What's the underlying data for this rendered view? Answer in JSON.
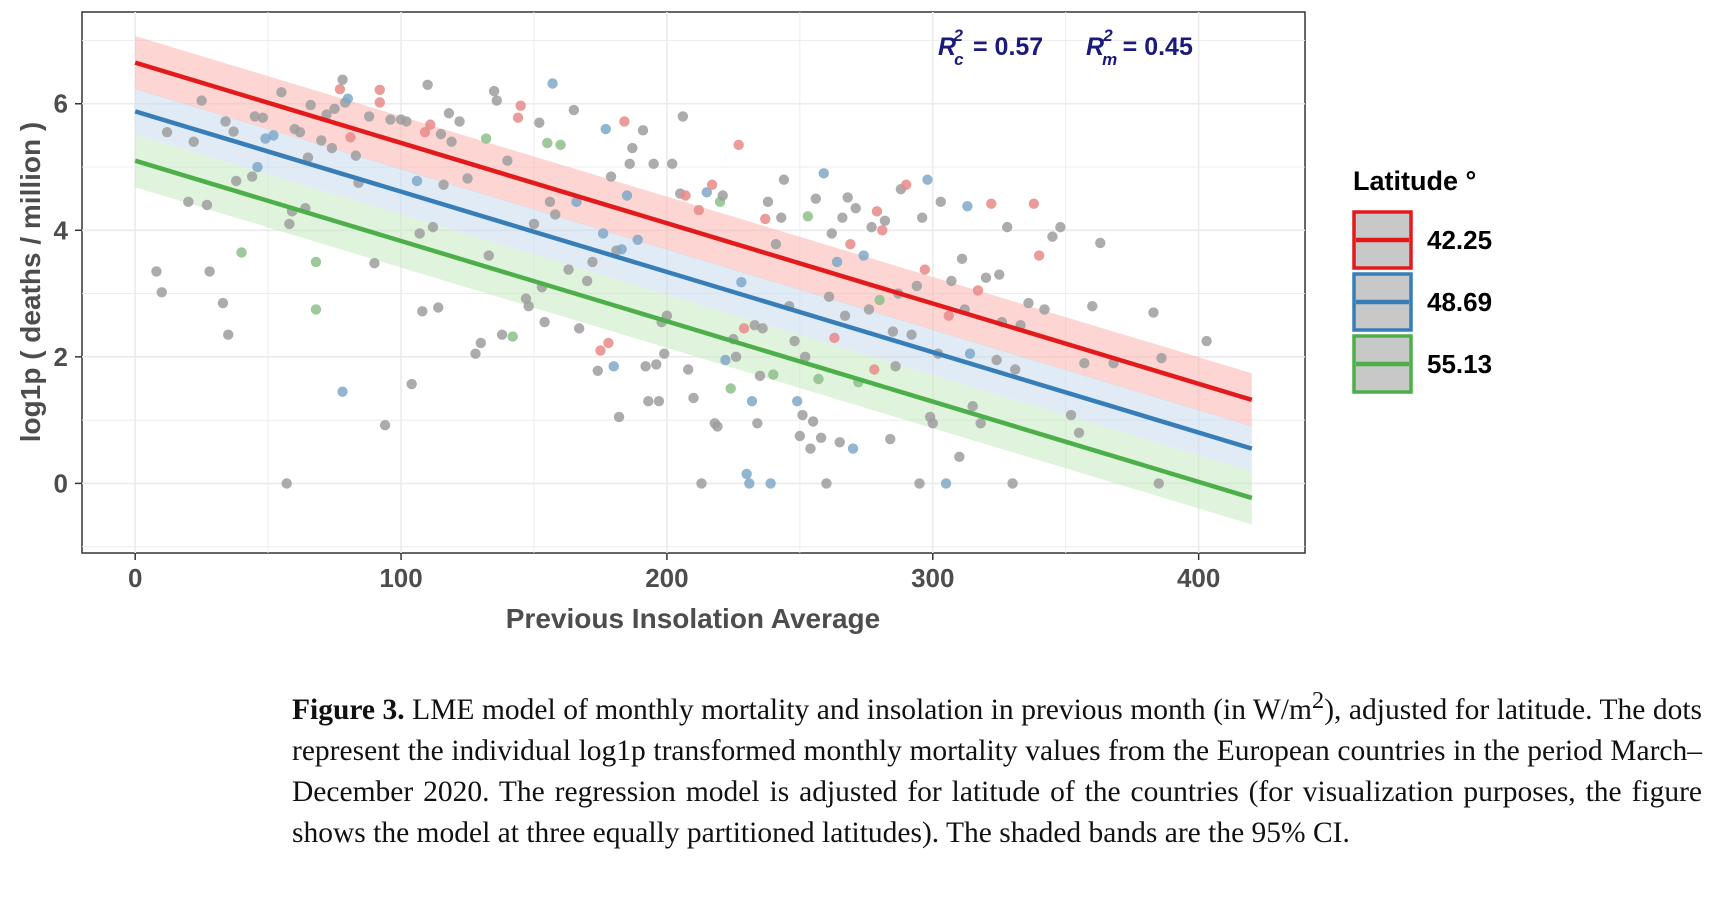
{
  "chart_data": {
    "type": "scatter",
    "xlabel": "Previous Insolation Average",
    "ylabel": "log1p ( deaths / million )",
    "xlim": [
      -20,
      440
    ],
    "ylim": [
      -1.1,
      7.45
    ],
    "x_ticks": [
      "0",
      "100",
      "200",
      "300",
      "400"
    ],
    "y_ticks": [
      "0",
      "2",
      "4",
      "6"
    ],
    "grid": true,
    "legend": {
      "title": "Latitude °",
      "position": "right"
    },
    "annotation": {
      "rc_label": "R",
      "rc_sup": "2",
      "rc_sub": "c",
      "rc_value": "= 0.57",
      "rm_label": "R",
      "rm_sup": "2",
      "rm_sub": "m",
      "rm_value": "= 0.45"
    },
    "series": [
      {
        "name": "42.25",
        "color": "#e31a1c",
        "band_color": "#fbb4ae",
        "line": {
          "x": [
            0,
            420
          ],
          "y": [
            6.65,
            1.32
          ]
        },
        "ci_halfwidth": 0.42
      },
      {
        "name": "48.69",
        "color": "#377eb8",
        "band_color": "#c6dbef",
        "line": {
          "x": [
            0,
            420
          ],
          "y": [
            5.88,
            0.55
          ]
        },
        "ci_halfwidth": 0.36
      },
      {
        "name": "55.13",
        "color": "#4daf4a",
        "band_color": "#c7e9c0",
        "line": {
          "x": [
            0,
            420
          ],
          "y": [
            5.1,
            -0.23
          ]
        },
        "ci_halfwidth": 0.42
      }
    ],
    "points": [
      [
        8,
        3.35,
        "g"
      ],
      [
        10,
        3.02,
        "g"
      ],
      [
        12,
        5.55,
        "g"
      ],
      [
        20,
        4.45,
        "g"
      ],
      [
        22,
        5.4,
        "g"
      ],
      [
        25,
        6.05,
        "g"
      ],
      [
        27,
        4.4,
        "g"
      ],
      [
        28,
        3.35,
        "g"
      ],
      [
        33,
        2.85,
        "g"
      ],
      [
        34,
        5.72,
        "g"
      ],
      [
        35,
        2.35,
        "g"
      ],
      [
        37,
        5.56,
        "g"
      ],
      [
        38,
        4.78,
        "g"
      ],
      [
        40,
        3.65,
        "gr"
      ],
      [
        44,
        4.85,
        "g"
      ],
      [
        45,
        5.8,
        "g"
      ],
      [
        46,
        5.0,
        "b"
      ],
      [
        48,
        5.78,
        "g"
      ],
      [
        49,
        5.45,
        "b"
      ],
      [
        52,
        5.5,
        "b"
      ],
      [
        55,
        6.18,
        "g"
      ],
      [
        57,
        0.0,
        "g"
      ],
      [
        58,
        4.1,
        "g"
      ],
      [
        59,
        4.3,
        "g"
      ],
      [
        60,
        5.6,
        "g"
      ],
      [
        62,
        5.55,
        "g"
      ],
      [
        64,
        4.35,
        "g"
      ],
      [
        65,
        5.15,
        "g"
      ],
      [
        66,
        5.98,
        "g"
      ],
      [
        68,
        3.5,
        "gr"
      ],
      [
        68,
        2.75,
        "gr"
      ],
      [
        70,
        5.42,
        "g"
      ],
      [
        72,
        5.83,
        "g"
      ],
      [
        74,
        5.3,
        "g"
      ],
      [
        75,
        5.92,
        "g"
      ],
      [
        77,
        6.23,
        "r"
      ],
      [
        78,
        6.38,
        "g"
      ],
      [
        78,
        1.45,
        "b"
      ],
      [
        79,
        6.02,
        "g"
      ],
      [
        80,
        6.08,
        "b"
      ],
      [
        81,
        5.47,
        "r"
      ],
      [
        83,
        5.18,
        "g"
      ],
      [
        84,
        4.75,
        "g"
      ],
      [
        88,
        5.8,
        "g"
      ],
      [
        90,
        3.48,
        "g"
      ],
      [
        92,
        6.22,
        "r"
      ],
      [
        92,
        6.02,
        "r"
      ],
      [
        94,
        0.92,
        "g"
      ],
      [
        96,
        5.75,
        "g"
      ],
      [
        100,
        5.75,
        "g"
      ],
      [
        102,
        5.72,
        "g"
      ],
      [
        104,
        1.57,
        "g"
      ],
      [
        106,
        4.78,
        "b"
      ],
      [
        107,
        3.95,
        "g"
      ],
      [
        108,
        2.72,
        "g"
      ],
      [
        109,
        5.55,
        "r"
      ],
      [
        110,
        6.3,
        "g"
      ],
      [
        111,
        5.67,
        "r"
      ],
      [
        112,
        4.05,
        "g"
      ],
      [
        114,
        2.78,
        "g"
      ],
      [
        115,
        5.52,
        "g"
      ],
      [
        116,
        4.72,
        "g"
      ],
      [
        118,
        5.85,
        "g"
      ],
      [
        119,
        5.4,
        "g"
      ],
      [
        122,
        5.72,
        "g"
      ],
      [
        125,
        4.82,
        "g"
      ],
      [
        128,
        2.05,
        "g"
      ],
      [
        130,
        2.22,
        "g"
      ],
      [
        132,
        5.45,
        "gr"
      ],
      [
        133,
        3.6,
        "g"
      ],
      [
        135,
        6.2,
        "g"
      ],
      [
        136,
        6.05,
        "g"
      ],
      [
        138,
        2.35,
        "g"
      ],
      [
        140,
        5.1,
        "g"
      ],
      [
        142,
        2.32,
        "gr"
      ],
      [
        144,
        5.78,
        "r"
      ],
      [
        145,
        5.97,
        "r"
      ],
      [
        147,
        2.92,
        "g"
      ],
      [
        148,
        2.8,
        "g"
      ],
      [
        150,
        4.1,
        "g"
      ],
      [
        152,
        5.7,
        "g"
      ],
      [
        153,
        3.1,
        "g"
      ],
      [
        154,
        2.55,
        "g"
      ],
      [
        155,
        5.38,
        "gr"
      ],
      [
        156,
        4.45,
        "g"
      ],
      [
        157,
        6.32,
        "b"
      ],
      [
        158,
        4.25,
        "g"
      ],
      [
        160,
        5.35,
        "gr"
      ],
      [
        163,
        3.38,
        "g"
      ],
      [
        165,
        5.9,
        "g"
      ],
      [
        166,
        4.45,
        "b"
      ],
      [
        167,
        2.45,
        "g"
      ],
      [
        170,
        3.2,
        "g"
      ],
      [
        172,
        3.5,
        "g"
      ],
      [
        174,
        1.78,
        "g"
      ],
      [
        175,
        2.1,
        "r"
      ],
      [
        176,
        3.95,
        "b"
      ],
      [
        177,
        5.6,
        "b"
      ],
      [
        178,
        2.22,
        "r"
      ],
      [
        179,
        4.85,
        "g"
      ],
      [
        180,
        1.85,
        "b"
      ],
      [
        181,
        3.68,
        "g"
      ],
      [
        182,
        1.05,
        "g"
      ],
      [
        183,
        3.7,
        "b"
      ],
      [
        184,
        5.72,
        "r"
      ],
      [
        185,
        4.55,
        "b"
      ],
      [
        186,
        5.05,
        "g"
      ],
      [
        187,
        5.3,
        "g"
      ],
      [
        189,
        3.85,
        "b"
      ],
      [
        191,
        5.58,
        "g"
      ],
      [
        192,
        1.85,
        "g"
      ],
      [
        193,
        1.3,
        "g"
      ],
      [
        195,
        5.05,
        "g"
      ],
      [
        196,
        1.88,
        "g"
      ],
      [
        197,
        1.3,
        "g"
      ],
      [
        198,
        2.55,
        "g"
      ],
      [
        199,
        2.05,
        "g"
      ],
      [
        200,
        2.65,
        "g"
      ],
      [
        202,
        5.05,
        "g"
      ],
      [
        205,
        4.58,
        "g"
      ],
      [
        206,
        5.8,
        "g"
      ],
      [
        207,
        4.55,
        "r"
      ],
      [
        208,
        1.8,
        "g"
      ],
      [
        210,
        1.35,
        "g"
      ],
      [
        212,
        4.32,
        "r"
      ],
      [
        213,
        0.0,
        "g"
      ],
      [
        215,
        4.6,
        "b"
      ],
      [
        217,
        4.72,
        "r"
      ],
      [
        218,
        0.95,
        "g"
      ],
      [
        219,
        0.9,
        "g"
      ],
      [
        220,
        4.45,
        "gr"
      ],
      [
        221,
        4.55,
        "g"
      ],
      [
        222,
        1.95,
        "b"
      ],
      [
        224,
        1.5,
        "gr"
      ],
      [
        225,
        2.28,
        "g"
      ],
      [
        226,
        2.0,
        "g"
      ],
      [
        227,
        5.35,
        "r"
      ],
      [
        228,
        3.18,
        "b"
      ],
      [
        229,
        2.45,
        "r"
      ],
      [
        230,
        0.15,
        "b"
      ],
      [
        231,
        0.0,
        "b"
      ],
      [
        232,
        1.3,
        "b"
      ],
      [
        233,
        2.5,
        "g"
      ],
      [
        234,
        0.95,
        "g"
      ],
      [
        235,
        1.7,
        "g"
      ],
      [
        236,
        2.45,
        "g"
      ],
      [
        237,
        4.18,
        "r"
      ],
      [
        238,
        4.45,
        "g"
      ],
      [
        239,
        0.0,
        "b"
      ],
      [
        240,
        1.72,
        "gr"
      ],
      [
        241,
        3.78,
        "g"
      ],
      [
        243,
        4.2,
        "g"
      ],
      [
        244,
        4.8,
        "g"
      ],
      [
        246,
        2.8,
        "g"
      ],
      [
        248,
        2.25,
        "g"
      ],
      [
        249,
        1.3,
        "b"
      ],
      [
        250,
        0.75,
        "g"
      ],
      [
        251,
        1.08,
        "g"
      ],
      [
        252,
        2.0,
        "g"
      ],
      [
        253,
        4.22,
        "gr"
      ],
      [
        254,
        0.55,
        "g"
      ],
      [
        255,
        0.98,
        "g"
      ],
      [
        256,
        4.5,
        "g"
      ],
      [
        257,
        1.65,
        "gr"
      ],
      [
        258,
        0.72,
        "g"
      ],
      [
        259,
        4.9,
        "b"
      ],
      [
        260,
        0.0,
        "g"
      ],
      [
        261,
        2.95,
        "g"
      ],
      [
        262,
        3.95,
        "g"
      ],
      [
        263,
        2.3,
        "r"
      ],
      [
        264,
        3.5,
        "b"
      ],
      [
        265,
        0.65,
        "g"
      ],
      [
        266,
        4.2,
        "g"
      ],
      [
        267,
        2.65,
        "g"
      ],
      [
        268,
        4.52,
        "g"
      ],
      [
        269,
        3.78,
        "r"
      ],
      [
        270,
        0.55,
        "b"
      ],
      [
        271,
        4.35,
        "g"
      ],
      [
        272,
        1.6,
        "gr"
      ],
      [
        274,
        3.6,
        "b"
      ],
      [
        276,
        2.75,
        "g"
      ],
      [
        277,
        4.05,
        "g"
      ],
      [
        278,
        1.8,
        "r"
      ],
      [
        279,
        4.3,
        "r"
      ],
      [
        280,
        2.9,
        "gr"
      ],
      [
        281,
        4.0,
        "r"
      ],
      [
        282,
        4.15,
        "g"
      ],
      [
        284,
        0.7,
        "g"
      ],
      [
        285,
        2.4,
        "g"
      ],
      [
        286,
        1.85,
        "g"
      ],
      [
        287,
        3.0,
        "g"
      ],
      [
        288,
        4.65,
        "g"
      ],
      [
        290,
        4.72,
        "r"
      ],
      [
        292,
        2.35,
        "g"
      ],
      [
        294,
        3.12,
        "g"
      ],
      [
        295,
        0.0,
        "g"
      ],
      [
        296,
        4.2,
        "g"
      ],
      [
        297,
        3.38,
        "r"
      ],
      [
        298,
        4.8,
        "b"
      ],
      [
        299,
        1.05,
        "g"
      ],
      [
        300,
        0.95,
        "g"
      ],
      [
        302,
        2.05,
        "g"
      ],
      [
        303,
        4.45,
        "g"
      ],
      [
        305,
        0.0,
        "b"
      ],
      [
        306,
        2.65,
        "r"
      ],
      [
        307,
        3.2,
        "g"
      ],
      [
        310,
        0.42,
        "g"
      ],
      [
        311,
        3.55,
        "g"
      ],
      [
        312,
        2.75,
        "g"
      ],
      [
        313,
        4.38,
        "b"
      ],
      [
        314,
        2.05,
        "b"
      ],
      [
        315,
        1.22,
        "g"
      ],
      [
        317,
        3.05,
        "r"
      ],
      [
        318,
        0.95,
        "g"
      ],
      [
        320,
        3.25,
        "g"
      ],
      [
        322,
        4.42,
        "r"
      ],
      [
        324,
        1.95,
        "g"
      ],
      [
        325,
        3.3,
        "g"
      ],
      [
        326,
        2.55,
        "g"
      ],
      [
        328,
        4.05,
        "g"
      ],
      [
        330,
        0.0,
        "g"
      ],
      [
        331,
        1.8,
        "g"
      ],
      [
        333,
        2.5,
        "g"
      ],
      [
        336,
        2.85,
        "g"
      ],
      [
        338,
        4.42,
        "r"
      ],
      [
        340,
        3.6,
        "r"
      ],
      [
        342,
        2.75,
        "g"
      ],
      [
        345,
        3.9,
        "g"
      ],
      [
        348,
        4.05,
        "g"
      ],
      [
        352,
        1.08,
        "g"
      ],
      [
        355,
        0.8,
        "g"
      ],
      [
        357,
        1.9,
        "g"
      ],
      [
        360,
        2.8,
        "g"
      ],
      [
        363,
        3.8,
        "g"
      ],
      [
        368,
        1.9,
        "g"
      ],
      [
        383,
        2.7,
        "g"
      ],
      [
        385,
        0.0,
        "g"
      ],
      [
        386,
        1.98,
        "g"
      ],
      [
        403,
        2.25,
        "g"
      ]
    ],
    "point_colors": {
      "g": "#9e9e9e",
      "r": "#e98a8a",
      "b": "#7fa8c8",
      "gr": "#8cc08a"
    }
  },
  "caption": {
    "label": "Figure 3.",
    "text_part1": " LME model of monthly mortality and insolation in previous month (in W/m",
    "sup": "2",
    "text_part2": "), adjusted for latitude. The dots represent the individual log1p transformed monthly mortality values from the European countries in the period March–December 2020. The regression model is adjusted for latitude of the countries (for visualization purposes, the figure shows the model at three equally partitioned latitudes). The shaded bands are the 95% CI."
  }
}
